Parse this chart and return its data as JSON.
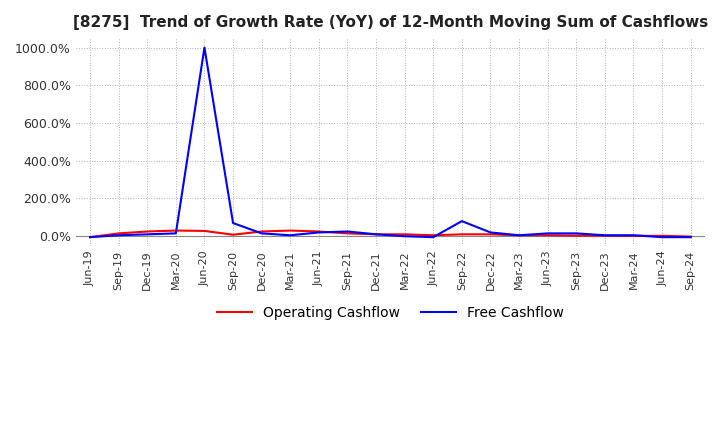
{
  "title": "[8275]  Trend of Growth Rate (YoY) of 12-Month Moving Sum of Cashflows",
  "title_fontsize": 11,
  "background_color": "#ffffff",
  "grid_color": "#aaaaaa",
  "legend_entries": [
    "Operating Cashflow",
    "Free Cashflow"
  ],
  "legend_colors": [
    "#ff0000",
    "#0000ff"
  ],
  "x_labels": [
    "Jun-19",
    "Sep-19",
    "Dec-19",
    "Mar-20",
    "Jun-20",
    "Sep-20",
    "Dec-20",
    "Mar-21",
    "Jun-21",
    "Sep-21",
    "Dec-21",
    "Mar-22",
    "Jun-22",
    "Sep-22",
    "Dec-22",
    "Mar-23",
    "Jun-23",
    "Sep-23",
    "Dec-23",
    "Mar-24",
    "Jun-24",
    "Sep-24"
  ],
  "operating_cashflow": [
    -5.0,
    15.0,
    25.0,
    30.0,
    28.0,
    8.0,
    25.0,
    30.0,
    25.0,
    15.0,
    10.0,
    10.0,
    5.0,
    10.0,
    10.0,
    5.0,
    5.0,
    3.0,
    3.0,
    2.0,
    2.0,
    -2.0
  ],
  "free_cashflow": [
    -5.0,
    5.0,
    10.0,
    15.0,
    1000.0,
    70.0,
    15.0,
    5.0,
    20.0,
    25.0,
    10.0,
    0.0,
    -5.0,
    80.0,
    20.0,
    5.0,
    15.0,
    15.0,
    5.0,
    5.0,
    -5.0,
    -5.0
  ],
  "ylim": [
    -50,
    1050
  ],
  "ytick_vals": [
    0,
    200,
    400,
    600,
    800,
    1000
  ],
  "ytick_labels": [
    "0.0%",
    "200.0%",
    "400.0%",
    "600.0%",
    "800.0%",
    "1000.0%"
  ]
}
